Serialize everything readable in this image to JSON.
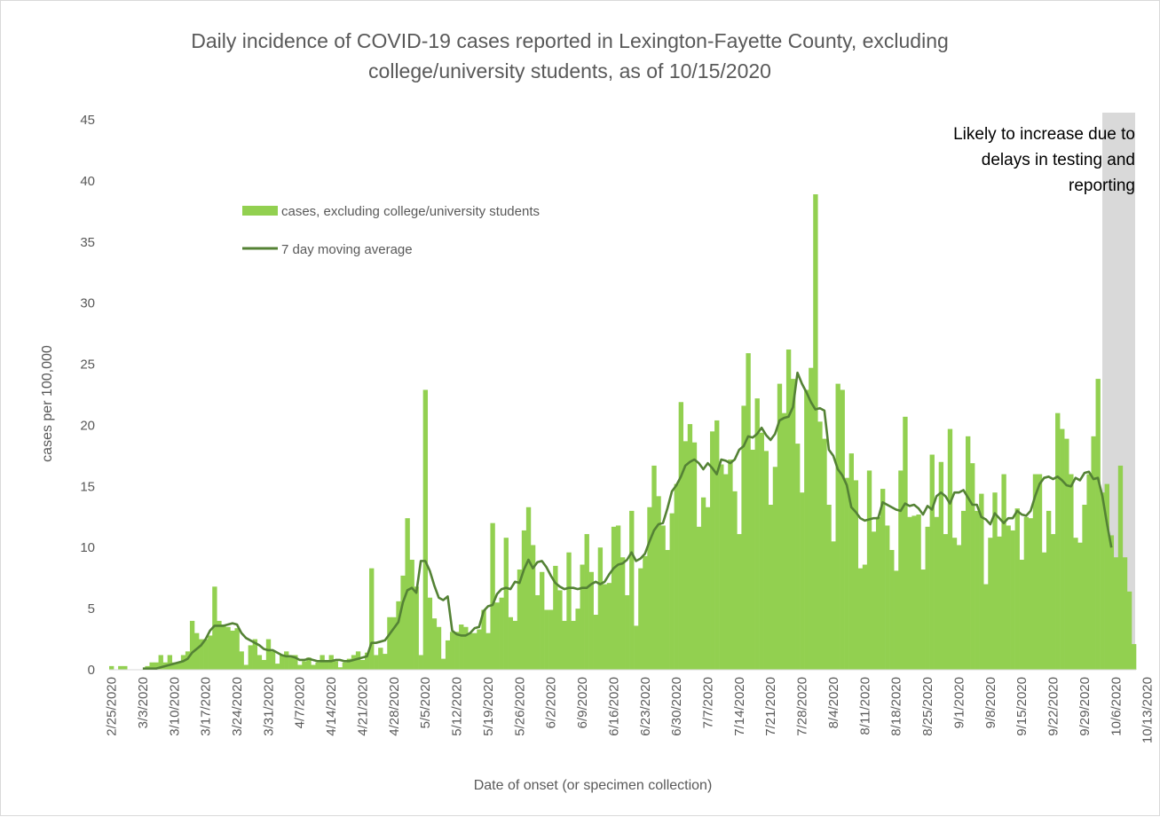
{
  "chart_data": {
    "type": "bar",
    "title_lines": [
      "Daily incidence of COVID-19 cases reported in Lexington-Fayette County, excluding",
      "college/university students, as of 10/15/2020"
    ],
    "xlabel": "Date of onset (or specimen collection)",
    "ylabel": "cases per 100,000",
    "ylim": [
      0,
      45
    ],
    "yticks": [
      0,
      5,
      10,
      15,
      20,
      25,
      30,
      35,
      40,
      45
    ],
    "grid": false,
    "legend_position": "upper-left",
    "x_start": "2/25/2020",
    "x_end": "10/15/2020",
    "x_tick_labels": [
      "2/25/2020",
      "3/3/2020",
      "3/10/2020",
      "3/17/2020",
      "3/24/2020",
      "3/31/2020",
      "4/7/2020",
      "4/14/2020",
      "4/21/2020",
      "4/28/2020",
      "5/5/2020",
      "5/12/2020",
      "5/19/2020",
      "5/26/2020",
      "6/2/2020",
      "6/9/2020",
      "6/16/2020",
      "6/23/2020",
      "6/30/2020",
      "7/7/2020",
      "7/14/2020",
      "7/21/2020",
      "7/28/2020",
      "8/4/2020",
      "8/11/2020",
      "8/18/2020",
      "8/25/2020",
      "9/1/2020",
      "9/8/2020",
      "9/15/2020",
      "9/22/2020",
      "9/29/2020",
      "10/6/2020",
      "10/13/2020"
    ],
    "colors": {
      "bars": "#92d050",
      "line": "#548235",
      "shade": "#d9d9d9",
      "text": "#595959",
      "annotation": "#000000"
    },
    "series": [
      {
        "name": "cases, excluding college/university students",
        "kind": "bar",
        "values": [
          0.3,
          0,
          0.3,
          0.3,
          0,
          0,
          0,
          0,
          0.3,
          0.6,
          0.6,
          1.2,
          0.6,
          1.2,
          0.6,
          0.6,
          1.2,
          1.5,
          4.0,
          3.0,
          2.5,
          2.5,
          2.8,
          6.8,
          4.0,
          3.7,
          3.5,
          3.2,
          3.4,
          1.5,
          0.4,
          2.0,
          2.5,
          1.2,
          0.8,
          2.5,
          1.5,
          0.5,
          1.2,
          1.5,
          1.2,
          1.2,
          0.4,
          0.7,
          1.0,
          0.4,
          0.6,
          1.2,
          0.8,
          1.2,
          0.7,
          0.2,
          0.6,
          0.9,
          1.2,
          1.5,
          0.8,
          1.4,
          8.3,
          1.2,
          1.8,
          1.3,
          4.3,
          4.3,
          5.6,
          7.7,
          12.4,
          9.0,
          6.8,
          1.2,
          22.9,
          5.9,
          4.2,
          3.5,
          0.9,
          2.4,
          3.1,
          3.1,
          3.7,
          3.5,
          3.0,
          3.0,
          3.3,
          4.9,
          3.0,
          12.0,
          5.5,
          5.9,
          10.8,
          4.3,
          4.0,
          8.2,
          11.4,
          13.3,
          10.2,
          6.1,
          8.0,
          4.9,
          4.9,
          8.5,
          6.5,
          4.0,
          9.6,
          4.0,
          5.0,
          8.6,
          11.1,
          8.0,
          4.5,
          10.0,
          7.0,
          7.1,
          11.7,
          11.8,
          9.2,
          6.1,
          13.0,
          3.6,
          8.3,
          9.3,
          13.3,
          16.7,
          14.2,
          11.8,
          9.8,
          12.8,
          15.2,
          21.9,
          18.7,
          20.1,
          18.6,
          11.7,
          14.1,
          13.3,
          19.5,
          20.4,
          16.8,
          16.0,
          17.2,
          14.6,
          11.1,
          21.6,
          25.9,
          18.0,
          22.2,
          19.4,
          17.9,
          13.5,
          16.6,
          23.4,
          21.0,
          26.2,
          23.8,
          18.5,
          14.5,
          22.9,
          24.7,
          38.9,
          20.3,
          18.9,
          13.5,
          10.5,
          23.4,
          22.9,
          15.7,
          17.7,
          15.5,
          8.3,
          8.6,
          16.3,
          11.3,
          12.5,
          14.8,
          11.8,
          9.8,
          8.1,
          16.3,
          20.7,
          12.5,
          12.6,
          12.7,
          8.2,
          11.7,
          17.6,
          12.5,
          17.0,
          11.1,
          19.7,
          10.8,
          10.2,
          13.0,
          19.1,
          16.9,
          13.0,
          14.4,
          7.0,
          10.8,
          14.5,
          10.9,
          16.0,
          11.8,
          11.4,
          13.2,
          9.0,
          12.5,
          12.4,
          16.0,
          16.0,
          9.6,
          13.0,
          11.1,
          21.0,
          19.7,
          18.9,
          16.0,
          10.8,
          10.4,
          13.5,
          16.0,
          19.1,
          23.8,
          14.5,
          15.2,
          11.0,
          9.2,
          16.7,
          9.2,
          6.4,
          2.1
        ]
      },
      {
        "name": "7 day moving average",
        "kind": "line",
        "values": [
          null,
          null,
          null,
          null,
          null,
          null,
          null,
          0.1,
          0.1,
          0.1,
          0.1,
          0.2,
          0.3,
          0.4,
          0.5,
          0.6,
          0.7,
          0.9,
          1.4,
          1.7,
          2.0,
          2.5,
          3.2,
          3.6,
          3.6,
          3.6,
          3.7,
          3.8,
          3.7,
          3.0,
          2.6,
          2.4,
          2.2,
          2.0,
          1.7,
          1.6,
          1.6,
          1.4,
          1.2,
          1.1,
          1.1,
          1.0,
          0.8,
          0.8,
          0.9,
          0.8,
          0.7,
          0.7,
          0.7,
          0.7,
          0.8,
          0.8,
          0.7,
          0.7,
          0.8,
          0.9,
          1.0,
          1.1,
          2.2,
          2.2,
          2.3,
          2.4,
          2.9,
          3.4,
          3.9,
          5.5,
          6.5,
          6.7,
          6.3,
          8.9,
          8.9,
          8.1,
          6.9,
          5.9,
          5.7,
          6.0,
          3.2,
          2.9,
          2.8,
          2.8,
          3.0,
          3.4,
          3.5,
          4.8,
          5.2,
          5.3,
          6.2,
          6.6,
          6.7,
          6.6,
          7.2,
          7.1,
          8.2,
          9.0,
          8.3,
          8.8,
          8.9,
          8.4,
          7.7,
          7.1,
          6.8,
          6.6,
          6.7,
          6.7,
          6.6,
          6.7,
          6.7,
          7.0,
          7.2,
          7.0,
          7.2,
          7.8,
          8.3,
          8.6,
          8.7,
          9.0,
          9.6,
          8.9,
          9.1,
          9.5,
          10.5,
          11.4,
          11.9,
          12.0,
          13.2,
          14.6,
          15.1,
          15.8,
          16.7,
          17.0,
          17.2,
          16.9,
          16.4,
          16.9,
          16.5,
          16.0,
          17.2,
          17.1,
          16.9,
          17.2,
          18.0,
          18.3,
          19.1,
          19.0,
          19.3,
          19.8,
          19.2,
          18.8,
          19.3,
          20.4,
          20.6,
          20.7,
          21.5,
          24.3,
          23.4,
          22.7,
          21.9,
          21.3,
          21.4,
          21.2,
          18.0,
          17.5,
          16.4,
          15.9,
          15.1,
          13.3,
          12.9,
          12.4,
          12.2,
          12.3,
          12.4,
          12.4,
          13.7,
          13.5,
          13.3,
          13.1,
          13.0,
          13.6,
          13.4,
          13.5,
          13.2,
          12.7,
          13.4,
          13.1,
          14.2,
          14.5,
          14.2,
          13.6,
          14.5,
          14.5,
          14.7,
          14.1,
          13.5,
          13.5,
          12.5,
          12.3,
          11.9,
          12.8,
          12.4,
          12.0,
          12.4,
          12.4,
          13.0,
          12.7,
          12.6,
          13.0,
          14.2,
          15.2,
          15.7,
          15.8,
          15.6,
          15.8,
          15.5,
          15.1,
          15.0,
          15.7,
          15.5,
          16.1,
          16.2,
          15.6,
          15.7,
          14.2,
          12.0,
          10.0
        ]
      }
    ]
  },
  "annotation_lines": [
    "Likely to increase due to",
    "delays in testing and",
    "reporting"
  ]
}
